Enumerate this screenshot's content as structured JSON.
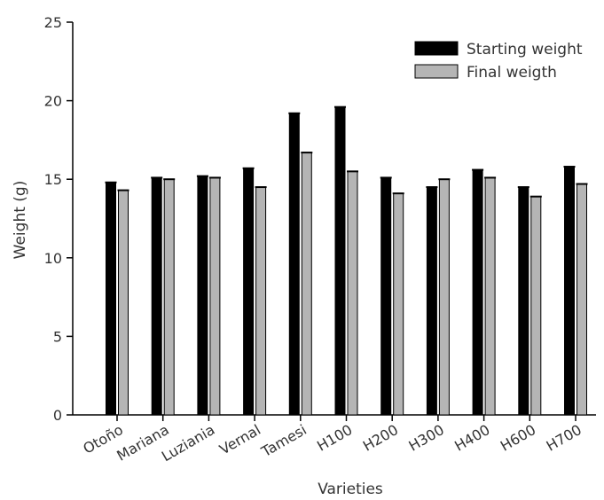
{
  "chart_data": {
    "type": "bar",
    "xlabel": "Varieties",
    "ylabel": "Weight (g)",
    "ylim": [
      0,
      25
    ],
    "yticks": [
      0,
      5,
      10,
      15,
      20,
      25
    ],
    "categories": [
      "Otoño",
      "Mariana",
      "Luziania",
      "Vernal",
      "Tamesi",
      "H100",
      "H200",
      "H300",
      "H400",
      "H600",
      "H700"
    ],
    "series": [
      {
        "name": "Starting weight",
        "color": "#000000",
        "values": [
          14.8,
          15.1,
          15.2,
          15.7,
          19.2,
          19.6,
          15.1,
          14.5,
          15.6,
          14.5,
          15.8
        ]
      },
      {
        "name": "Final weigth",
        "color": "#b5b5b5",
        "values": [
          14.3,
          15.0,
          15.1,
          14.5,
          16.7,
          15.5,
          14.1,
          15.0,
          15.1,
          13.9,
          14.7
        ]
      }
    ],
    "legend_position": "top-right",
    "grid": false
  }
}
